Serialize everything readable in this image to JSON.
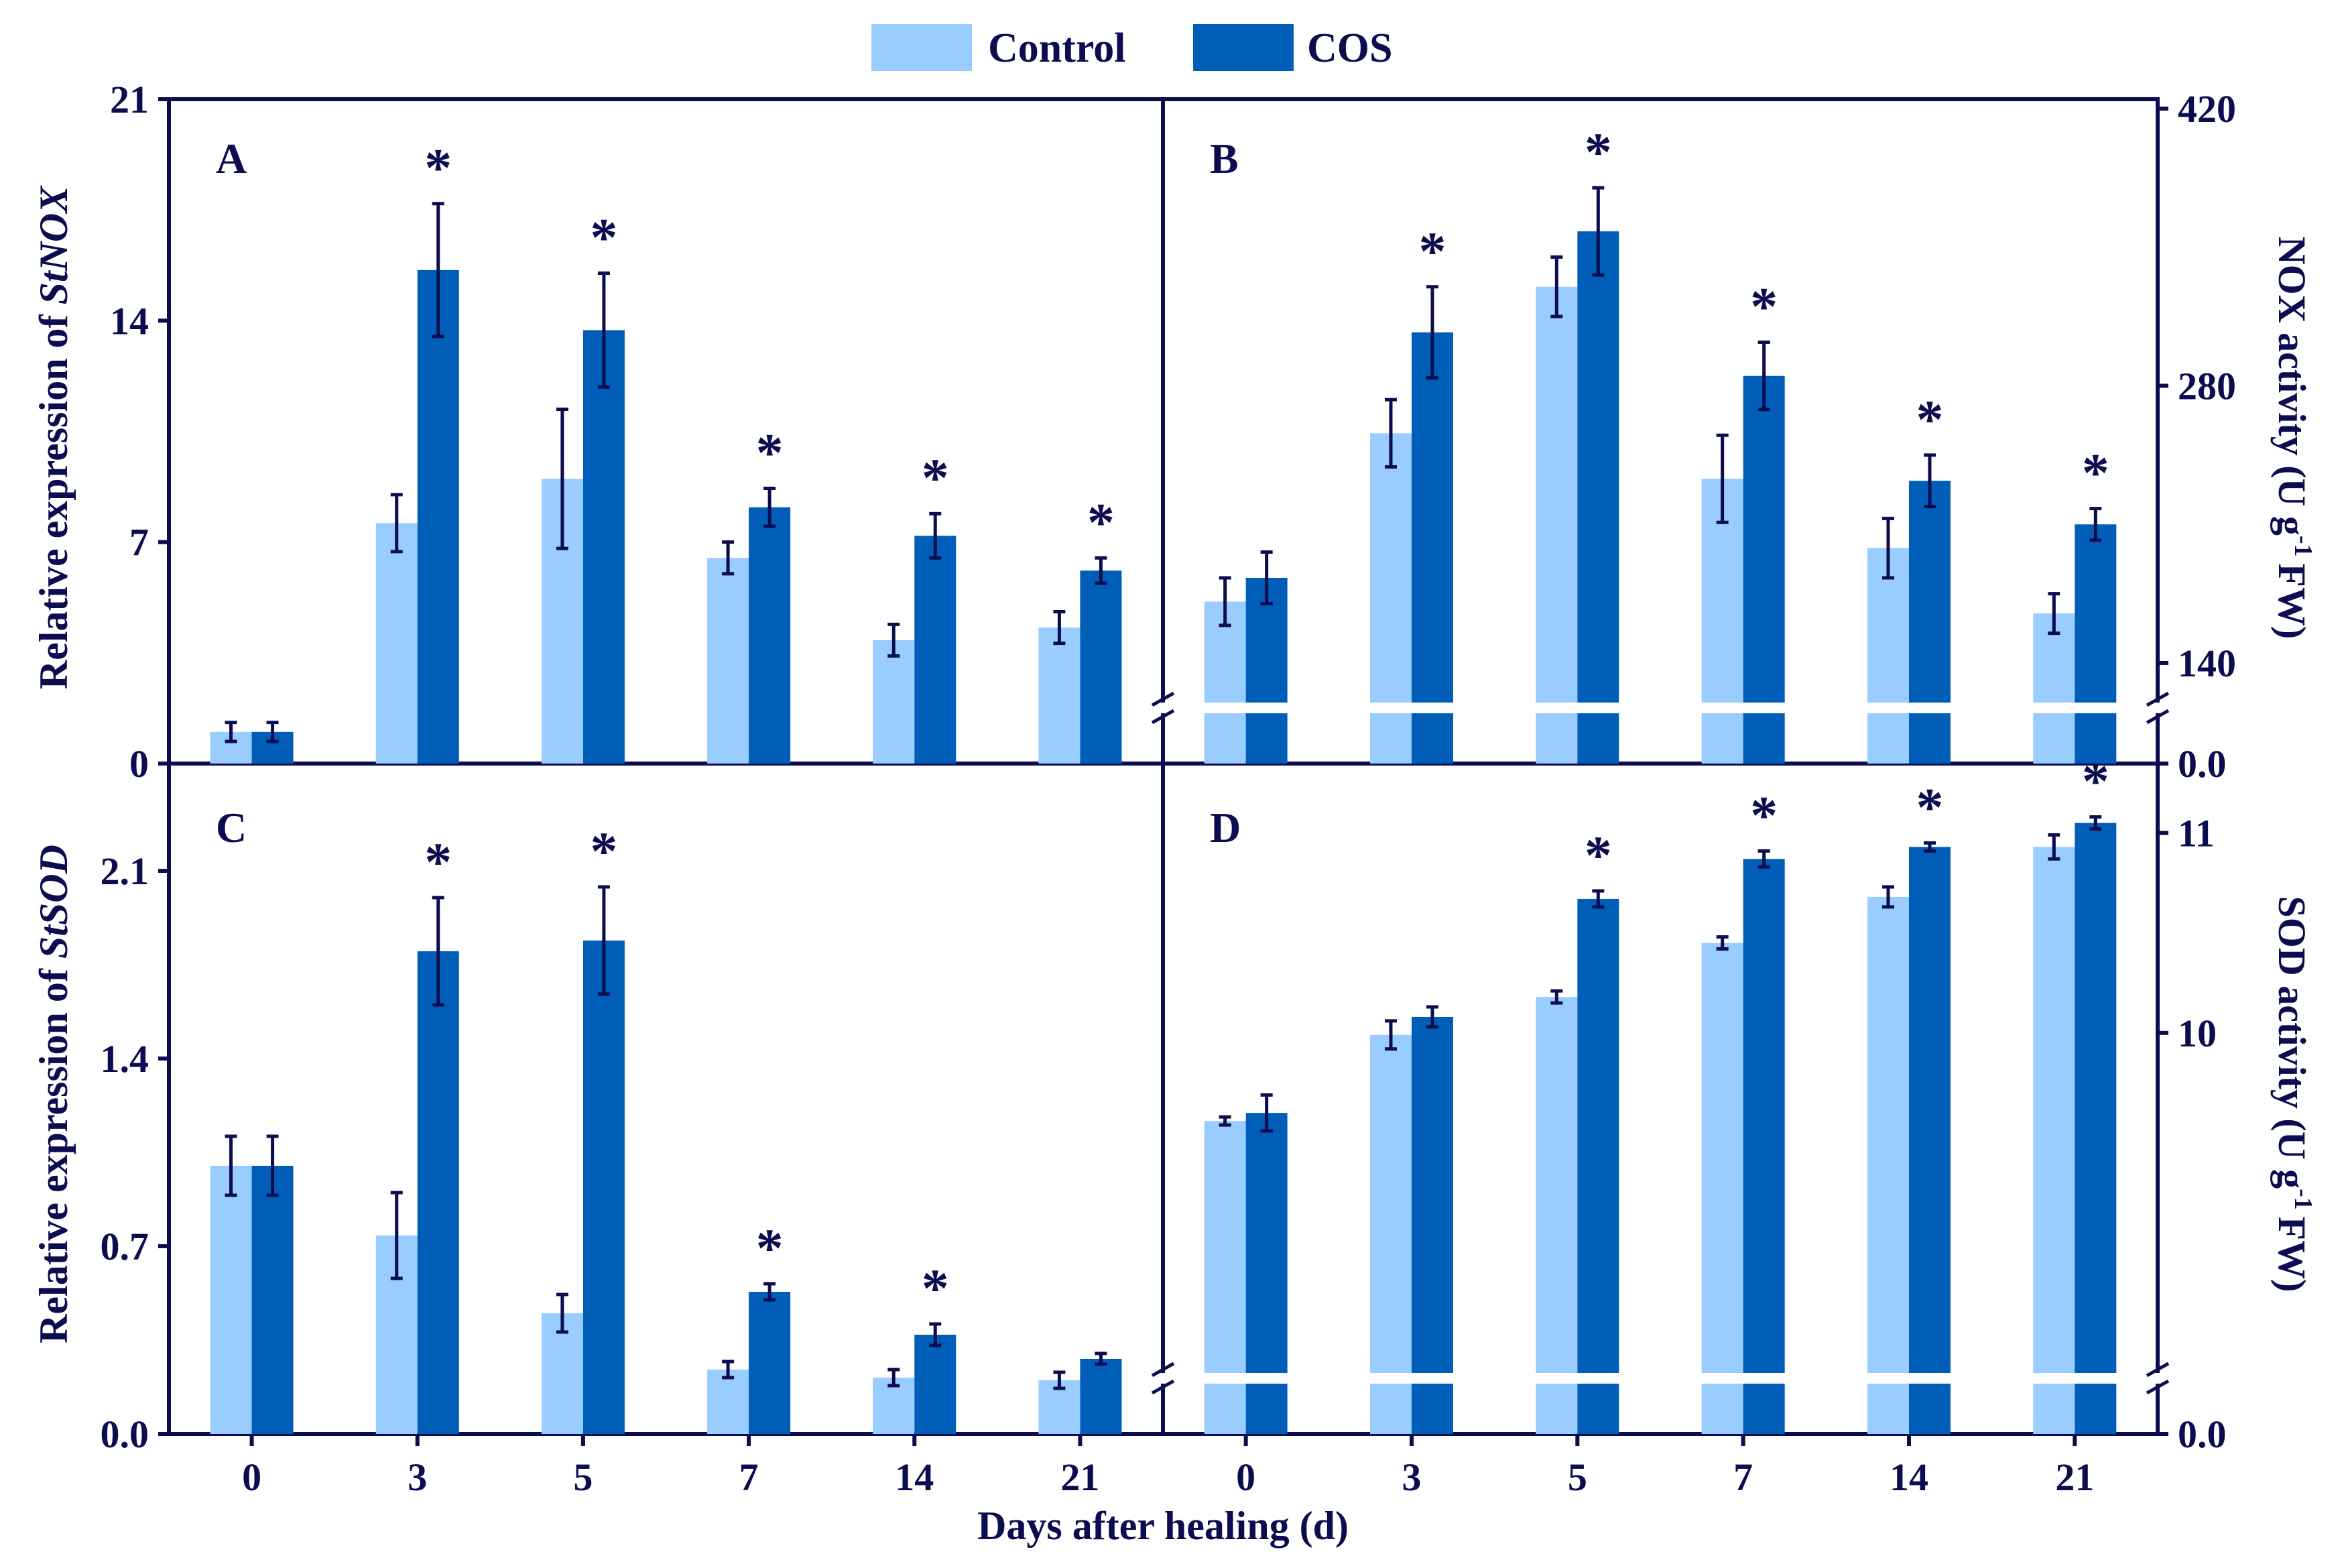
{
  "colors": {
    "control": "#99ccff",
    "cos": "#005eb8",
    "axis": "#0c0c50",
    "error_bar": "#0c0c50"
  },
  "legend": {
    "items": [
      "Control",
      "COS"
    ]
  },
  "shared": {
    "categories": [
      "0",
      "3",
      "5",
      "7",
      "14",
      "21"
    ],
    "xlabel": "Days after healing (d)",
    "significance_mark": "*"
  },
  "chart_data": [
    {
      "panel": "A",
      "type": "bar",
      "ylabel": "Relative expression of ",
      "ylabel_gene": "StNOX",
      "ylim": [
        0,
        21
      ],
      "yticks": [
        "0",
        "7",
        "14",
        "21"
      ],
      "ytick_values": [
        0,
        7,
        14,
        21
      ],
      "series": [
        {
          "name": "Control",
          "values": [
            1.0,
            7.6,
            9.0,
            6.5,
            3.9,
            4.3
          ],
          "errors": [
            0.3,
            0.9,
            2.2,
            0.5,
            0.5,
            0.5
          ]
        },
        {
          "name": "COS",
          "values": [
            1.0,
            15.6,
            13.7,
            8.1,
            7.2,
            6.1
          ],
          "errors": [
            0.3,
            2.1,
            1.8,
            0.6,
            0.7,
            0.4
          ]
        }
      ],
      "significant": [
        false,
        true,
        true,
        true,
        true,
        true
      ]
    },
    {
      "panel": "B",
      "type": "bar",
      "ylabel": "NOX activity (U g",
      "ylabel_sup": "-1",
      "ylabel_end": "FW)",
      "axis_side": "right",
      "broken_axis": true,
      "ylim_lower": [
        0,
        20
      ],
      "ylim_upper": [
        120,
        420
      ],
      "yticks": [
        "0.0",
        "140",
        "280",
        "420"
      ],
      "ytick_values": [
        0,
        140,
        280,
        420
      ],
      "series": [
        {
          "name": "Control",
          "values": [
            171,
            256,
            330,
            233,
            198,
            165
          ],
          "errors": [
            12,
            17,
            15,
            22,
            15,
            10
          ]
        },
        {
          "name": "COS",
          "values": [
            183,
            307,
            358,
            285,
            232,
            210
          ],
          "errors": [
            13,
            23,
            22,
            17,
            13,
            8
          ]
        }
      ],
      "significant": [
        false,
        true,
        true,
        true,
        true,
        true
      ]
    },
    {
      "panel": "C",
      "type": "bar",
      "ylabel": "Relative expression of ",
      "ylabel_gene": "StSOD",
      "ylim": [
        0,
        2.5
      ],
      "yticks": [
        "0.0",
        "0.7",
        "1.4",
        "2.1"
      ],
      "ytick_values": [
        0,
        0.7,
        1.4,
        2.1
      ],
      "series": [
        {
          "name": "Control",
          "values": [
            1.0,
            0.74,
            0.45,
            0.24,
            0.21,
            0.2
          ],
          "errors": [
            0.11,
            0.16,
            0.07,
            0.03,
            0.03,
            0.03
          ]
        },
        {
          "name": "COS",
          "values": [
            1.0,
            1.8,
            1.84,
            0.53,
            0.37,
            0.28
          ],
          "errors": [
            0.11,
            0.2,
            0.2,
            0.03,
            0.04,
            0.02
          ]
        }
      ],
      "significant": [
        false,
        true,
        true,
        true,
        true,
        false
      ]
    },
    {
      "panel": "D",
      "type": "bar",
      "ylabel": "SOD activity (U g",
      "ylabel_sup": "-1",
      "ylabel_end": "FW)",
      "axis_side": "right",
      "broken_axis": true,
      "ylim_lower": [
        0,
        1
      ],
      "ylim_upper": [
        8.3,
        11.3
      ],
      "yticks": [
        "0.0",
        "10",
        "11"
      ],
      "ytick_values": [
        0,
        10,
        11
      ],
      "series": [
        {
          "name": "Control",
          "values": [
            9.56,
            9.99,
            10.18,
            10.45,
            10.68,
            10.93
          ],
          "errors": [
            0.02,
            0.07,
            0.03,
            0.03,
            0.05,
            0.06
          ]
        },
        {
          "name": "COS",
          "values": [
            9.6,
            10.08,
            10.67,
            10.87,
            10.93,
            11.05
          ],
          "errors": [
            0.09,
            0.05,
            0.04,
            0.04,
            0.02,
            0.03
          ]
        }
      ],
      "significant": [
        false,
        false,
        true,
        true,
        true,
        true
      ]
    }
  ]
}
